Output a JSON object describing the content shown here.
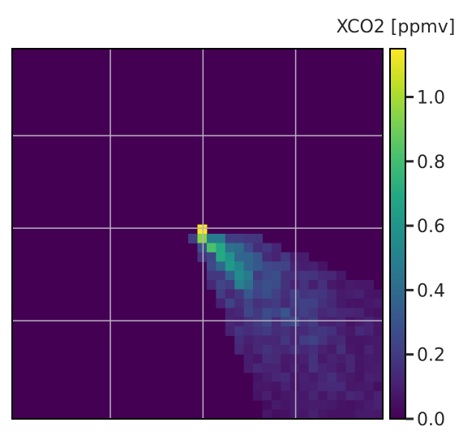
{
  "chart_data": {
    "type": "heatmap",
    "title": "",
    "xlabel": "",
    "ylabel": "",
    "grid": true,
    "colormap": "viridis",
    "colorbar": {
      "label": "XCO2 [ppmv]",
      "range": [
        0,
        1.15
      ],
      "ticks": [
        0.0,
        0.2,
        0.4,
        0.6,
        0.8,
        1.0
      ],
      "tick_labels": [
        "0.0",
        "0.2",
        "0.4",
        "0.6",
        "0.8",
        "1.0"
      ]
    },
    "grid_size": [
      40,
      40
    ],
    "source_cell": {
      "row": 19,
      "col": 20
    },
    "plume": {
      "shape": "diagonal plume spreading from source toward bottom-right",
      "peak_value": 1.15,
      "near_source_values": [
        1.15,
        0.95,
        0.82,
        0.7,
        0.62,
        0.55,
        0.5
      ],
      "far_field_value_range": [
        0.05,
        0.35
      ]
    },
    "background_value": 0.0
  },
  "colors": {
    "background": "#ffffff",
    "axes_border": "#000000",
    "grid_line": "#b9b0c0",
    "tick_text": "#262626"
  }
}
